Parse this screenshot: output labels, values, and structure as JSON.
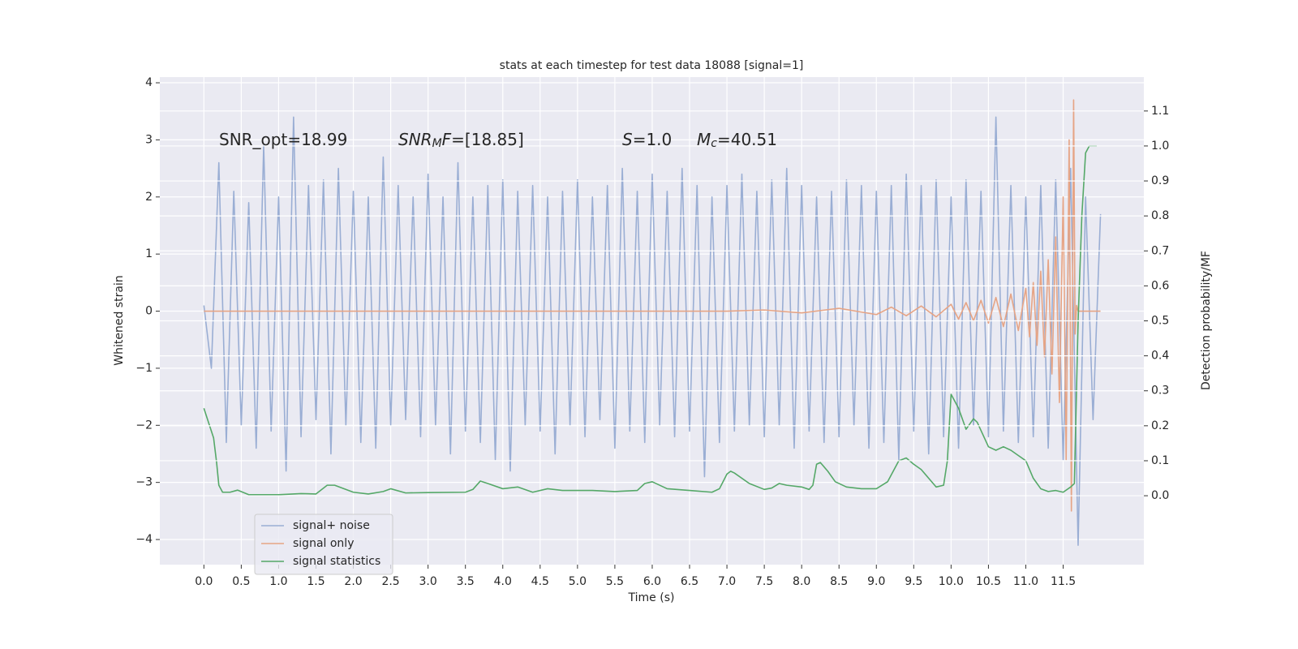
{
  "chart_data": {
    "type": "line",
    "title": "stats at each timestep for test data 18088 [signal=1]",
    "xlabel": "Time (s)",
    "ylabel": "Whitened strain",
    "y2label": "Detection probability/MF",
    "grid": true,
    "legend": "lower left",
    "xlim": [
      -0.59,
      12.58
    ],
    "ylim": [
      -4.44,
      4.1
    ],
    "y2lim": [
      -0.197,
      1.197
    ],
    "xticks": [
      {
        "value": 0,
        "label": "0.0"
      },
      {
        "value": 0.5,
        "label": "0.5"
      },
      {
        "value": 1,
        "label": "1.0"
      },
      {
        "value": 1.5,
        "label": "1.5"
      },
      {
        "value": 2,
        "label": "2.0"
      },
      {
        "value": 2.5,
        "label": "2.5"
      },
      {
        "value": 3,
        "label": "3.0"
      },
      {
        "value": 3.5,
        "label": "3.5"
      },
      {
        "value": 4,
        "label": "4.0"
      },
      {
        "value": 4.5,
        "label": "4.5"
      },
      {
        "value": 5,
        "label": "5.0"
      },
      {
        "value": 5.5,
        "label": "5.5"
      },
      {
        "value": 6,
        "label": "6.0"
      },
      {
        "value": 6.5,
        "label": "6.5"
      },
      {
        "value": 7,
        "label": "7.0"
      },
      {
        "value": 7.5,
        "label": "7.5"
      },
      {
        "value": 8,
        "label": "8.0"
      },
      {
        "value": 8.5,
        "label": "8.5"
      },
      {
        "value": 9,
        "label": "9.0"
      },
      {
        "value": 9.5,
        "label": "9.5"
      },
      {
        "value": 10,
        "label": "10.0"
      },
      {
        "value": 10.5,
        "label": "10.5"
      },
      {
        "value": 11,
        "label": "11.0"
      },
      {
        "value": 11.5,
        "label": "11.5"
      }
    ],
    "yticks": [
      {
        "value": -4,
        "label": "−4"
      },
      {
        "value": -3,
        "label": "−3"
      },
      {
        "value": -2,
        "label": "−2"
      },
      {
        "value": -1,
        "label": "−1"
      },
      0,
      1,
      2,
      3,
      4
    ],
    "y2ticks": [
      {
        "value": 0,
        "label": "0.0"
      },
      {
        "value": 0.1,
        "label": "0.1"
      },
      {
        "value": 0.2,
        "label": "0.2"
      },
      {
        "value": 0.3,
        "label": "0.3"
      },
      {
        "value": 0.4,
        "label": "0.4"
      },
      {
        "value": 0.5,
        "label": "0.5"
      },
      {
        "value": 0.6,
        "label": "0.6"
      },
      {
        "value": 0.7,
        "label": "0.7"
      },
      {
        "value": 0.8,
        "label": "0.8"
      },
      {
        "value": 0.9,
        "label": "0.9"
      },
      {
        "value": 1,
        "label": "1.0"
      },
      {
        "value": 1.1,
        "label": "1.1"
      }
    ],
    "annotations": [
      [
        {
          "text": "SNR_opt=18.99"
        }
      ],
      [
        {
          "text": "SNR",
          "italic": true
        },
        {
          "text": "M",
          "italic": true,
          "sub": true
        },
        {
          "text": "F",
          "italic": true
        },
        {
          "text": "=[18.85]"
        }
      ],
      [
        {
          "text": "S",
          "italic": true
        },
        {
          "text": "=1.0"
        }
      ],
      [
        {
          "text": "M",
          "italic": true
        },
        {
          "text": "c",
          "italic": true,
          "sub": true
        },
        {
          "text": "=40.51"
        }
      ]
    ],
    "series": [
      {
        "name": "signal+ noise",
        "color": "#9aaed4",
        "x": [
          0,
          0.1,
          0.2,
          0.3,
          0.4,
          0.5,
          0.6,
          0.7,
          0.8,
          0.9,
          1,
          1.1,
          1.2,
          1.3,
          1.4,
          1.5,
          1.6,
          1.7,
          1.8,
          1.9,
          2,
          2.1,
          2.2,
          2.3,
          2.4,
          2.5,
          2.6,
          2.7,
          2.8,
          2.9,
          3,
          3.1,
          3.2,
          3.3,
          3.4,
          3.5,
          3.6,
          3.7,
          3.8,
          3.9,
          4,
          4.1,
          4.2,
          4.3,
          4.4,
          4.5,
          4.6,
          4.7,
          4.8,
          4.9,
          5,
          5.1,
          5.2,
          5.3,
          5.4,
          5.5,
          5.6,
          5.7,
          5.8,
          5.9,
          6,
          6.1,
          6.2,
          6.3,
          6.4,
          6.5,
          6.6,
          6.7,
          6.8,
          6.9,
          7,
          7.1,
          7.2,
          7.3,
          7.4,
          7.5,
          7.6,
          7.7,
          7.8,
          7.9,
          8,
          8.1,
          8.2,
          8.3,
          8.4,
          8.5,
          8.6,
          8.7,
          8.8,
          8.9,
          9,
          9.1,
          9.2,
          9.3,
          9.4,
          9.5,
          9.6,
          9.7,
          9.8,
          9.9,
          10,
          10.1,
          10.2,
          10.3,
          10.4,
          10.5,
          10.6,
          10.7,
          10.8,
          10.9,
          11,
          11.1,
          11.2,
          11.3,
          11.4,
          11.5,
          11.6,
          11.7,
          11.8,
          11.9,
          12
        ],
        "values": [
          0.1,
          -1,
          2.6,
          -2.3,
          2.1,
          -2,
          1.9,
          -2.4,
          2.9,
          -2.1,
          2,
          -2.8,
          3.4,
          -2.2,
          2.2,
          -1.9,
          2.3,
          -2.5,
          2.5,
          -2,
          2.1,
          -2.3,
          2,
          -2.4,
          2.7,
          -2,
          2.2,
          -1.9,
          2,
          -2.2,
          2.4,
          -2,
          2,
          -2.5,
          2.6,
          -2.1,
          2,
          -2.3,
          2.2,
          -2.6,
          2.3,
          -2.8,
          2.1,
          -2,
          2.2,
          -2.1,
          2,
          -2.5,
          2.1,
          -2,
          2.3,
          -2.2,
          2,
          -1.9,
          2.2,
          -2.4,
          2.5,
          -2.1,
          2.1,
          -2.3,
          2.4,
          -2,
          2.1,
          -2.2,
          2.5,
          -2.1,
          2.2,
          -2.9,
          2,
          -2.3,
          2.2,
          -2.1,
          2.4,
          -2,
          2.1,
          -2.2,
          2.3,
          -2,
          2.5,
          -2.4,
          2.2,
          -2.1,
          2,
          -2.3,
          2.1,
          -2.2,
          2.3,
          -2,
          2.2,
          -2.4,
          2.1,
          -2.3,
          2.2,
          -2.6,
          2.4,
          -2.1,
          2.2,
          -2.5,
          2.3,
          -2.2,
          2,
          -2.4,
          2.3,
          -2,
          2.1,
          -2.2,
          3.4,
          -2.1,
          2.2,
          -2.3,
          2,
          -2.2,
          2.2,
          -2.4,
          2.3,
          -2.6,
          2.5,
          -4.1,
          2,
          -1.9,
          1.7
        ]
      },
      {
        "name": "signal only",
        "color": "#e6a485",
        "x": [
          0,
          7,
          7.5,
          8,
          8.5,
          9,
          9.2,
          9.4,
          9.6,
          9.8,
          10,
          10.1,
          10.2,
          10.3,
          10.4,
          10.5,
          10.6,
          10.7,
          10.8,
          10.9,
          11,
          11.05,
          11.1,
          11.15,
          11.2,
          11.25,
          11.3,
          11.35,
          11.4,
          11.45,
          11.5,
          11.54,
          11.58,
          11.61,
          11.64,
          11.66,
          11.68,
          11.7,
          12
        ],
        "values": [
          0,
          0,
          0.02,
          -0.03,
          0.05,
          -0.06,
          0.07,
          -0.08,
          0.09,
          -0.1,
          0.12,
          -0.14,
          0.15,
          -0.17,
          0.19,
          -0.21,
          0.24,
          -0.27,
          0.3,
          -0.34,
          0.4,
          -0.45,
          0.5,
          -0.6,
          0.7,
          -0.8,
          0.9,
          -1.1,
          1.3,
          -1.6,
          2,
          -2.6,
          3,
          -3.5,
          3.7,
          -0.4,
          0.1,
          0,
          0
        ]
      },
      {
        "name": "signal statistics",
        "color": "#55a868",
        "axis": "y2",
        "x": [
          0,
          0.13,
          0.17,
          0.2,
          0.25,
          0.35,
          0.45,
          0.6,
          1,
          1.3,
          1.5,
          1.65,
          1.75,
          2,
          2.2,
          2.4,
          2.5,
          2.7,
          3,
          3.5,
          3.6,
          3.7,
          3.8,
          4,
          4.2,
          4.4,
          4.6,
          4.8,
          5,
          5.2,
          5.5,
          5.8,
          5.9,
          6,
          6.2,
          6.5,
          6.8,
          6.9,
          7,
          7.05,
          7.1,
          7.3,
          7.5,
          7.6,
          7.7,
          7.8,
          8,
          8.1,
          8.15,
          8.2,
          8.25,
          8.35,
          8.45,
          8.6,
          8.8,
          9,
          9.15,
          9.3,
          9.4,
          9.5,
          9.6,
          9.7,
          9.8,
          9.9,
          9.95,
          10,
          10.1,
          10.2,
          10.3,
          10.35,
          10.5,
          10.6,
          10.7,
          10.8,
          10.9,
          11,
          11.1,
          11.2,
          11.3,
          11.4,
          11.5,
          11.6,
          11.65,
          11.7,
          11.75,
          11.8,
          11.85,
          11.95
        ],
        "values": [
          0.25,
          0.165,
          0.095,
          0.03,
          0.01,
          0.01,
          0.016,
          0.003,
          0.003,
          0.006,
          0.005,
          0.03,
          0.03,
          0.01,
          0.005,
          0.012,
          0.02,
          0.008,
          0.009,
          0.01,
          0.018,
          0.042,
          0.035,
          0.02,
          0.025,
          0.01,
          0.02,
          0.015,
          0.015,
          0.015,
          0.012,
          0.015,
          0.035,
          0.04,
          0.02,
          0.015,
          0.01,
          0.02,
          0.062,
          0.07,
          0.065,
          0.035,
          0.018,
          0.022,
          0.035,
          0.03,
          0.025,
          0.018,
          0.03,
          0.09,
          0.095,
          0.07,
          0.04,
          0.025,
          0.02,
          0.02,
          0.04,
          0.1,
          0.108,
          0.09,
          0.075,
          0.05,
          0.025,
          0.03,
          0.1,
          0.29,
          0.25,
          0.19,
          0.22,
          0.21,
          0.14,
          0.13,
          0.14,
          0.13,
          0.115,
          0.1,
          0.05,
          0.02,
          0.012,
          0.015,
          0.01,
          0.025,
          0.035,
          0.5,
          0.8,
          0.98,
          1,
          1
        ]
      }
    ]
  }
}
